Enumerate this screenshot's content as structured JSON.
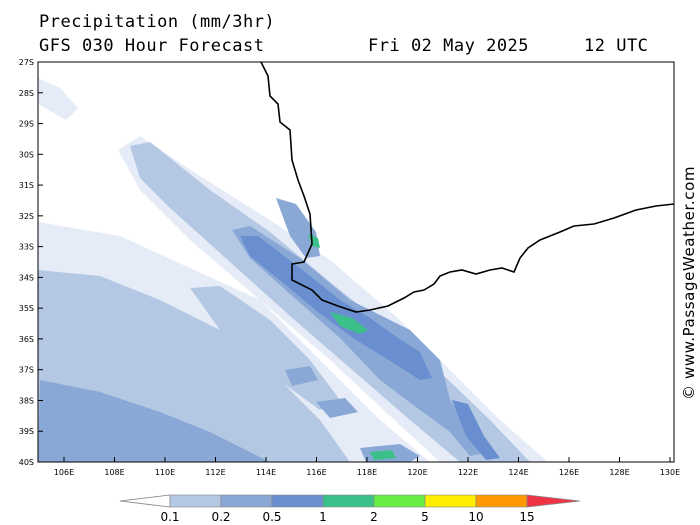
{
  "header": {
    "title": "Precipitation (mm/3hr)",
    "forecast": "GFS 030 Hour Forecast",
    "date": "Fri 02 May 2025",
    "time": "12 UTC"
  },
  "map": {
    "latitude_labels": [
      "27S",
      "28S",
      "29S",
      "30S",
      "31S",
      "32S",
      "33S",
      "34S",
      "35S",
      "36S",
      "37S",
      "38S",
      "39S",
      "40S"
    ],
    "longitude_labels": [
      "106E",
      "108E",
      "110E",
      "112E",
      "114E",
      "116E",
      "118E",
      "120E",
      "122E",
      "124E",
      "126E",
      "128E",
      "130E"
    ],
    "coastline_color": "#000000",
    "background_color": "#ffffff"
  },
  "legend": {
    "labels": [
      "0.1",
      "0.2",
      "0.5",
      "1",
      "2",
      "5",
      "10",
      "15"
    ],
    "colors": [
      "#e6ecf7",
      "#b4c8e4",
      "#8aa8d6",
      "#6a8fd0",
      "#3cc08a",
      "#66ee44",
      "#ffee00",
      "#ff9900",
      "#ee3344"
    ]
  },
  "credit": "© www.PassageWeather.com"
}
